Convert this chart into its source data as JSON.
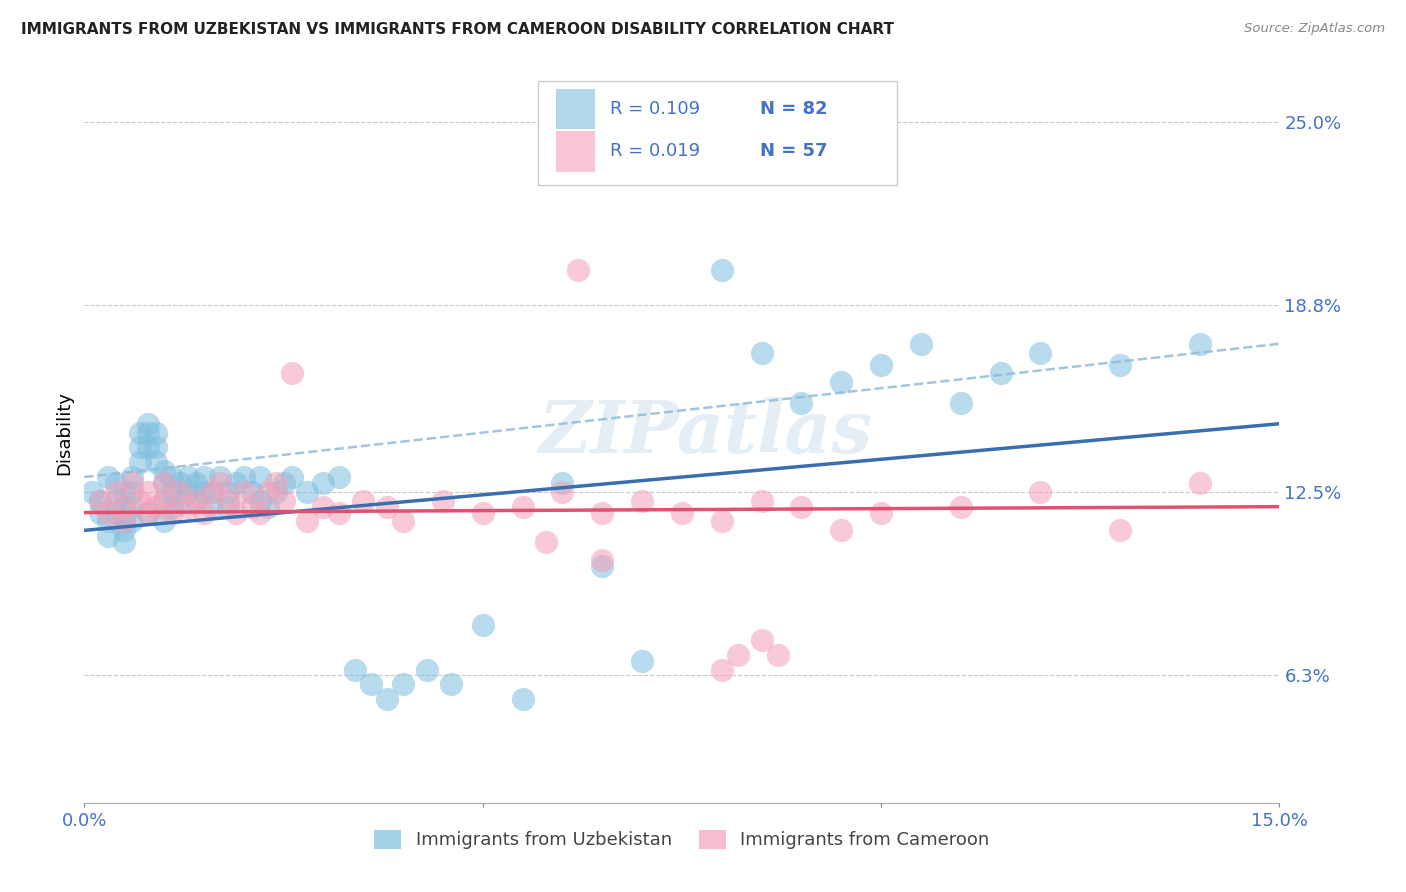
{
  "title": "IMMIGRANTS FROM UZBEKISTAN VS IMMIGRANTS FROM CAMEROON DISABILITY CORRELATION CHART",
  "source": "Source: ZipAtlas.com",
  "ylabel": "Disability",
  "yticks": [
    0.063,
    0.125,
    0.188,
    0.25
  ],
  "ytick_labels": [
    "6.3%",
    "12.5%",
    "18.8%",
    "25.0%"
  ],
  "xlim": [
    0.0,
    0.15
  ],
  "ylim": [
    0.02,
    0.27
  ],
  "color_uzbekistan": "#7fbfdf",
  "color_cameroon": "#f4a0b8",
  "color_line_uzbekistan": "#3a6faf",
  "color_line_cameroon": "#e05070",
  "color_dashed": "#90bcd8",
  "color_axis_labels": "#4472c4",
  "background": "#ffffff",
  "grid_color": "#c8c8c8",
  "watermark": "ZIPatlas",
  "uz_x": [
    0.001,
    0.002,
    0.002,
    0.003,
    0.003,
    0.003,
    0.004,
    0.004,
    0.004,
    0.005,
    0.005,
    0.005,
    0.005,
    0.005,
    0.006,
    0.006,
    0.006,
    0.006,
    0.007,
    0.007,
    0.007,
    0.008,
    0.008,
    0.008,
    0.008,
    0.009,
    0.009,
    0.009,
    0.01,
    0.01,
    0.01,
    0.01,
    0.011,
    0.011,
    0.011,
    0.012,
    0.012,
    0.013,
    0.013,
    0.014,
    0.014,
    0.015,
    0.015,
    0.016,
    0.016,
    0.017,
    0.018,
    0.018,
    0.019,
    0.02,
    0.021,
    0.022,
    0.022,
    0.023,
    0.024,
    0.025,
    0.026,
    0.028,
    0.03,
    0.032,
    0.034,
    0.036,
    0.038,
    0.04,
    0.043,
    0.046,
    0.05,
    0.055,
    0.06,
    0.065,
    0.07,
    0.08,
    0.085,
    0.09,
    0.095,
    0.1,
    0.105,
    0.11,
    0.115,
    0.12,
    0.13,
    0.14
  ],
  "uz_y": [
    0.125,
    0.122,
    0.118,
    0.13,
    0.115,
    0.11,
    0.128,
    0.122,
    0.118,
    0.125,
    0.12,
    0.115,
    0.112,
    0.108,
    0.13,
    0.125,
    0.12,
    0.115,
    0.145,
    0.14,
    0.135,
    0.148,
    0.145,
    0.14,
    0.118,
    0.145,
    0.14,
    0.135,
    0.132,
    0.128,
    0.122,
    0.115,
    0.13,
    0.125,
    0.12,
    0.128,
    0.122,
    0.13,
    0.125,
    0.128,
    0.122,
    0.13,
    0.125,
    0.125,
    0.12,
    0.13,
    0.125,
    0.12,
    0.128,
    0.13,
    0.125,
    0.13,
    0.122,
    0.12,
    0.125,
    0.128,
    0.13,
    0.125,
    0.128,
    0.13,
    0.065,
    0.06,
    0.055,
    0.06,
    0.065,
    0.06,
    0.08,
    0.055,
    0.128,
    0.1,
    0.068,
    0.2,
    0.172,
    0.155,
    0.162,
    0.168,
    0.175,
    0.155,
    0.165,
    0.172,
    0.168,
    0.175
  ],
  "cm_x": [
    0.002,
    0.003,
    0.004,
    0.005,
    0.005,
    0.006,
    0.007,
    0.008,
    0.008,
    0.009,
    0.01,
    0.01,
    0.011,
    0.012,
    0.013,
    0.014,
    0.015,
    0.016,
    0.017,
    0.018,
    0.019,
    0.02,
    0.021,
    0.022,
    0.023,
    0.024,
    0.025,
    0.026,
    0.028,
    0.03,
    0.032,
    0.035,
    0.038,
    0.04,
    0.045,
    0.05,
    0.055,
    0.06,
    0.065,
    0.07,
    0.075,
    0.08,
    0.085,
    0.09,
    0.095,
    0.1,
    0.11,
    0.12,
    0.13,
    0.062,
    0.058,
    0.065,
    0.08,
    0.082,
    0.085,
    0.087,
    0.14
  ],
  "cm_y": [
    0.122,
    0.118,
    0.125,
    0.12,
    0.115,
    0.128,
    0.122,
    0.125,
    0.118,
    0.12,
    0.128,
    0.122,
    0.118,
    0.125,
    0.12,
    0.122,
    0.118,
    0.125,
    0.128,
    0.122,
    0.118,
    0.125,
    0.12,
    0.118,
    0.125,
    0.128,
    0.122,
    0.165,
    0.115,
    0.12,
    0.118,
    0.122,
    0.12,
    0.115,
    0.122,
    0.118,
    0.12,
    0.125,
    0.118,
    0.122,
    0.118,
    0.115,
    0.122,
    0.12,
    0.112,
    0.118,
    0.12,
    0.125,
    0.112,
    0.2,
    0.108,
    0.102,
    0.065,
    0.07,
    0.075,
    0.07,
    0.128
  ],
  "uz_line_x0": 0.0,
  "uz_line_x1": 0.15,
  "uz_line_y0": 0.112,
  "uz_line_y1": 0.148,
  "cm_line_x0": 0.0,
  "cm_line_x1": 0.15,
  "cm_line_y0": 0.118,
  "cm_line_y1": 0.12,
  "dash_line_x0": 0.0,
  "dash_line_x1": 0.15,
  "dash_line_y0": 0.13,
  "dash_line_y1": 0.175
}
